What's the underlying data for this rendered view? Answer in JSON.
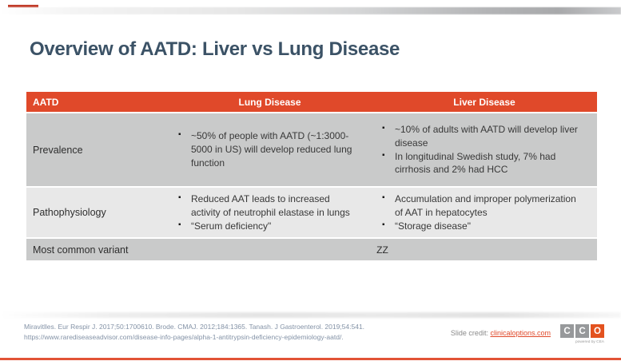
{
  "slide": {
    "title": "Overview of AATD: Liver vs Lung Disease"
  },
  "table": {
    "headers": [
      "AATD",
      "Lung Disease",
      "Liver Disease"
    ],
    "rows": [
      {
        "label": "Prevalence",
        "lung": [
          "~50% of people with AATD (~1:3000-5000 in US) will develop reduced lung function"
        ],
        "liver": [
          "~10% of adults with AATD will develop liver disease",
          "In longitudinal Swedish study, 7% had cirrhosis and 2% had HCC"
        ]
      },
      {
        "label": "Pathophysiology",
        "lung": [
          "Reduced AAT leads to increased activity of neutrophil elastase in lungs",
          "“Serum deficiency\""
        ],
        "liver": [
          "Accumulation and improper polymerization of AAT in hepatocytes",
          "“Storage disease\""
        ]
      },
      {
        "label": "Most common variant",
        "merged_value": "ZZ"
      }
    ]
  },
  "footer": {
    "citation_line1": "Miravitlles. Eur Respir J. 2017;50:1700610. Brode. CMAJ. 2012;184:1365. Tanash. J Gastroenterol. 2019;54:541.",
    "citation_line2": "https://www.rarediseaseadvisor.com/disease-info-pages/alpha-1-antitrypsin-deficiency-epidemiology-aatd/.",
    "slide_credit_label": "Slide credit: ",
    "slide_credit_link": "clinicaloptions.com",
    "logo": {
      "letter1": "C",
      "letter2": "C",
      "letter3": "O",
      "tagline": "powered by CEA"
    }
  },
  "colors": {
    "header_bg": "#e0492a",
    "accent_red": "#c23e2b",
    "bottom_line": "#e25335",
    "title_text": "#3b5266",
    "row_gray": "#c9caca",
    "row_light_gray": "#e8e8e8",
    "citation_text": "#8392a6",
    "link_orange": "#e0492a",
    "logo_gray": "#97999b",
    "logo_orange": "#e3521f"
  }
}
